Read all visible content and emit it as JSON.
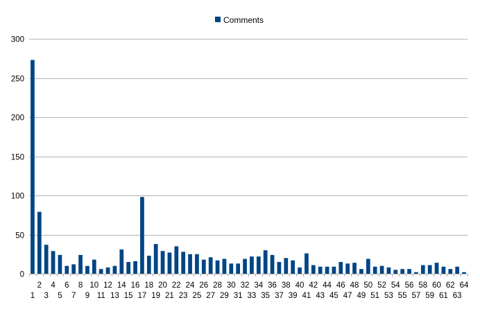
{
  "chart_data": {
    "type": "bar",
    "title": "",
    "xlabel": "",
    "ylabel": "",
    "ylim": [
      0,
      300
    ],
    "yticks": [
      0,
      50,
      100,
      150,
      200,
      250,
      300
    ],
    "grid": true,
    "legend_position": "top-center",
    "categories": [
      1,
      2,
      3,
      4,
      5,
      6,
      7,
      8,
      9,
      10,
      11,
      12,
      13,
      14,
      15,
      16,
      17,
      18,
      19,
      20,
      21,
      22,
      23,
      24,
      25,
      26,
      27,
      28,
      29,
      30,
      31,
      32,
      33,
      34,
      35,
      36,
      37,
      38,
      39,
      40,
      41,
      42,
      43,
      44,
      45,
      46,
      47,
      48,
      49,
      50,
      51,
      52,
      53,
      54,
      55,
      56,
      57,
      58,
      59,
      60,
      61,
      62,
      63,
      64
    ],
    "series": [
      {
        "name": "Comments",
        "color": "#004586",
        "values": [
          273,
          79,
          37,
          29,
          24,
          10,
          12,
          24,
          10,
          18,
          6,
          8,
          10,
          31,
          15,
          16,
          98,
          23,
          38,
          29,
          27,
          35,
          28,
          25,
          25,
          18,
          21,
          17,
          19,
          13,
          13,
          19,
          22,
          22,
          30,
          24,
          15,
          20,
          17,
          8,
          26,
          11,
          9,
          9,
          9,
          15,
          13,
          14,
          6,
          19,
          9,
          10,
          8,
          5,
          6,
          6,
          2,
          11,
          11,
          14,
          9,
          6,
          9,
          2
        ]
      }
    ]
  }
}
